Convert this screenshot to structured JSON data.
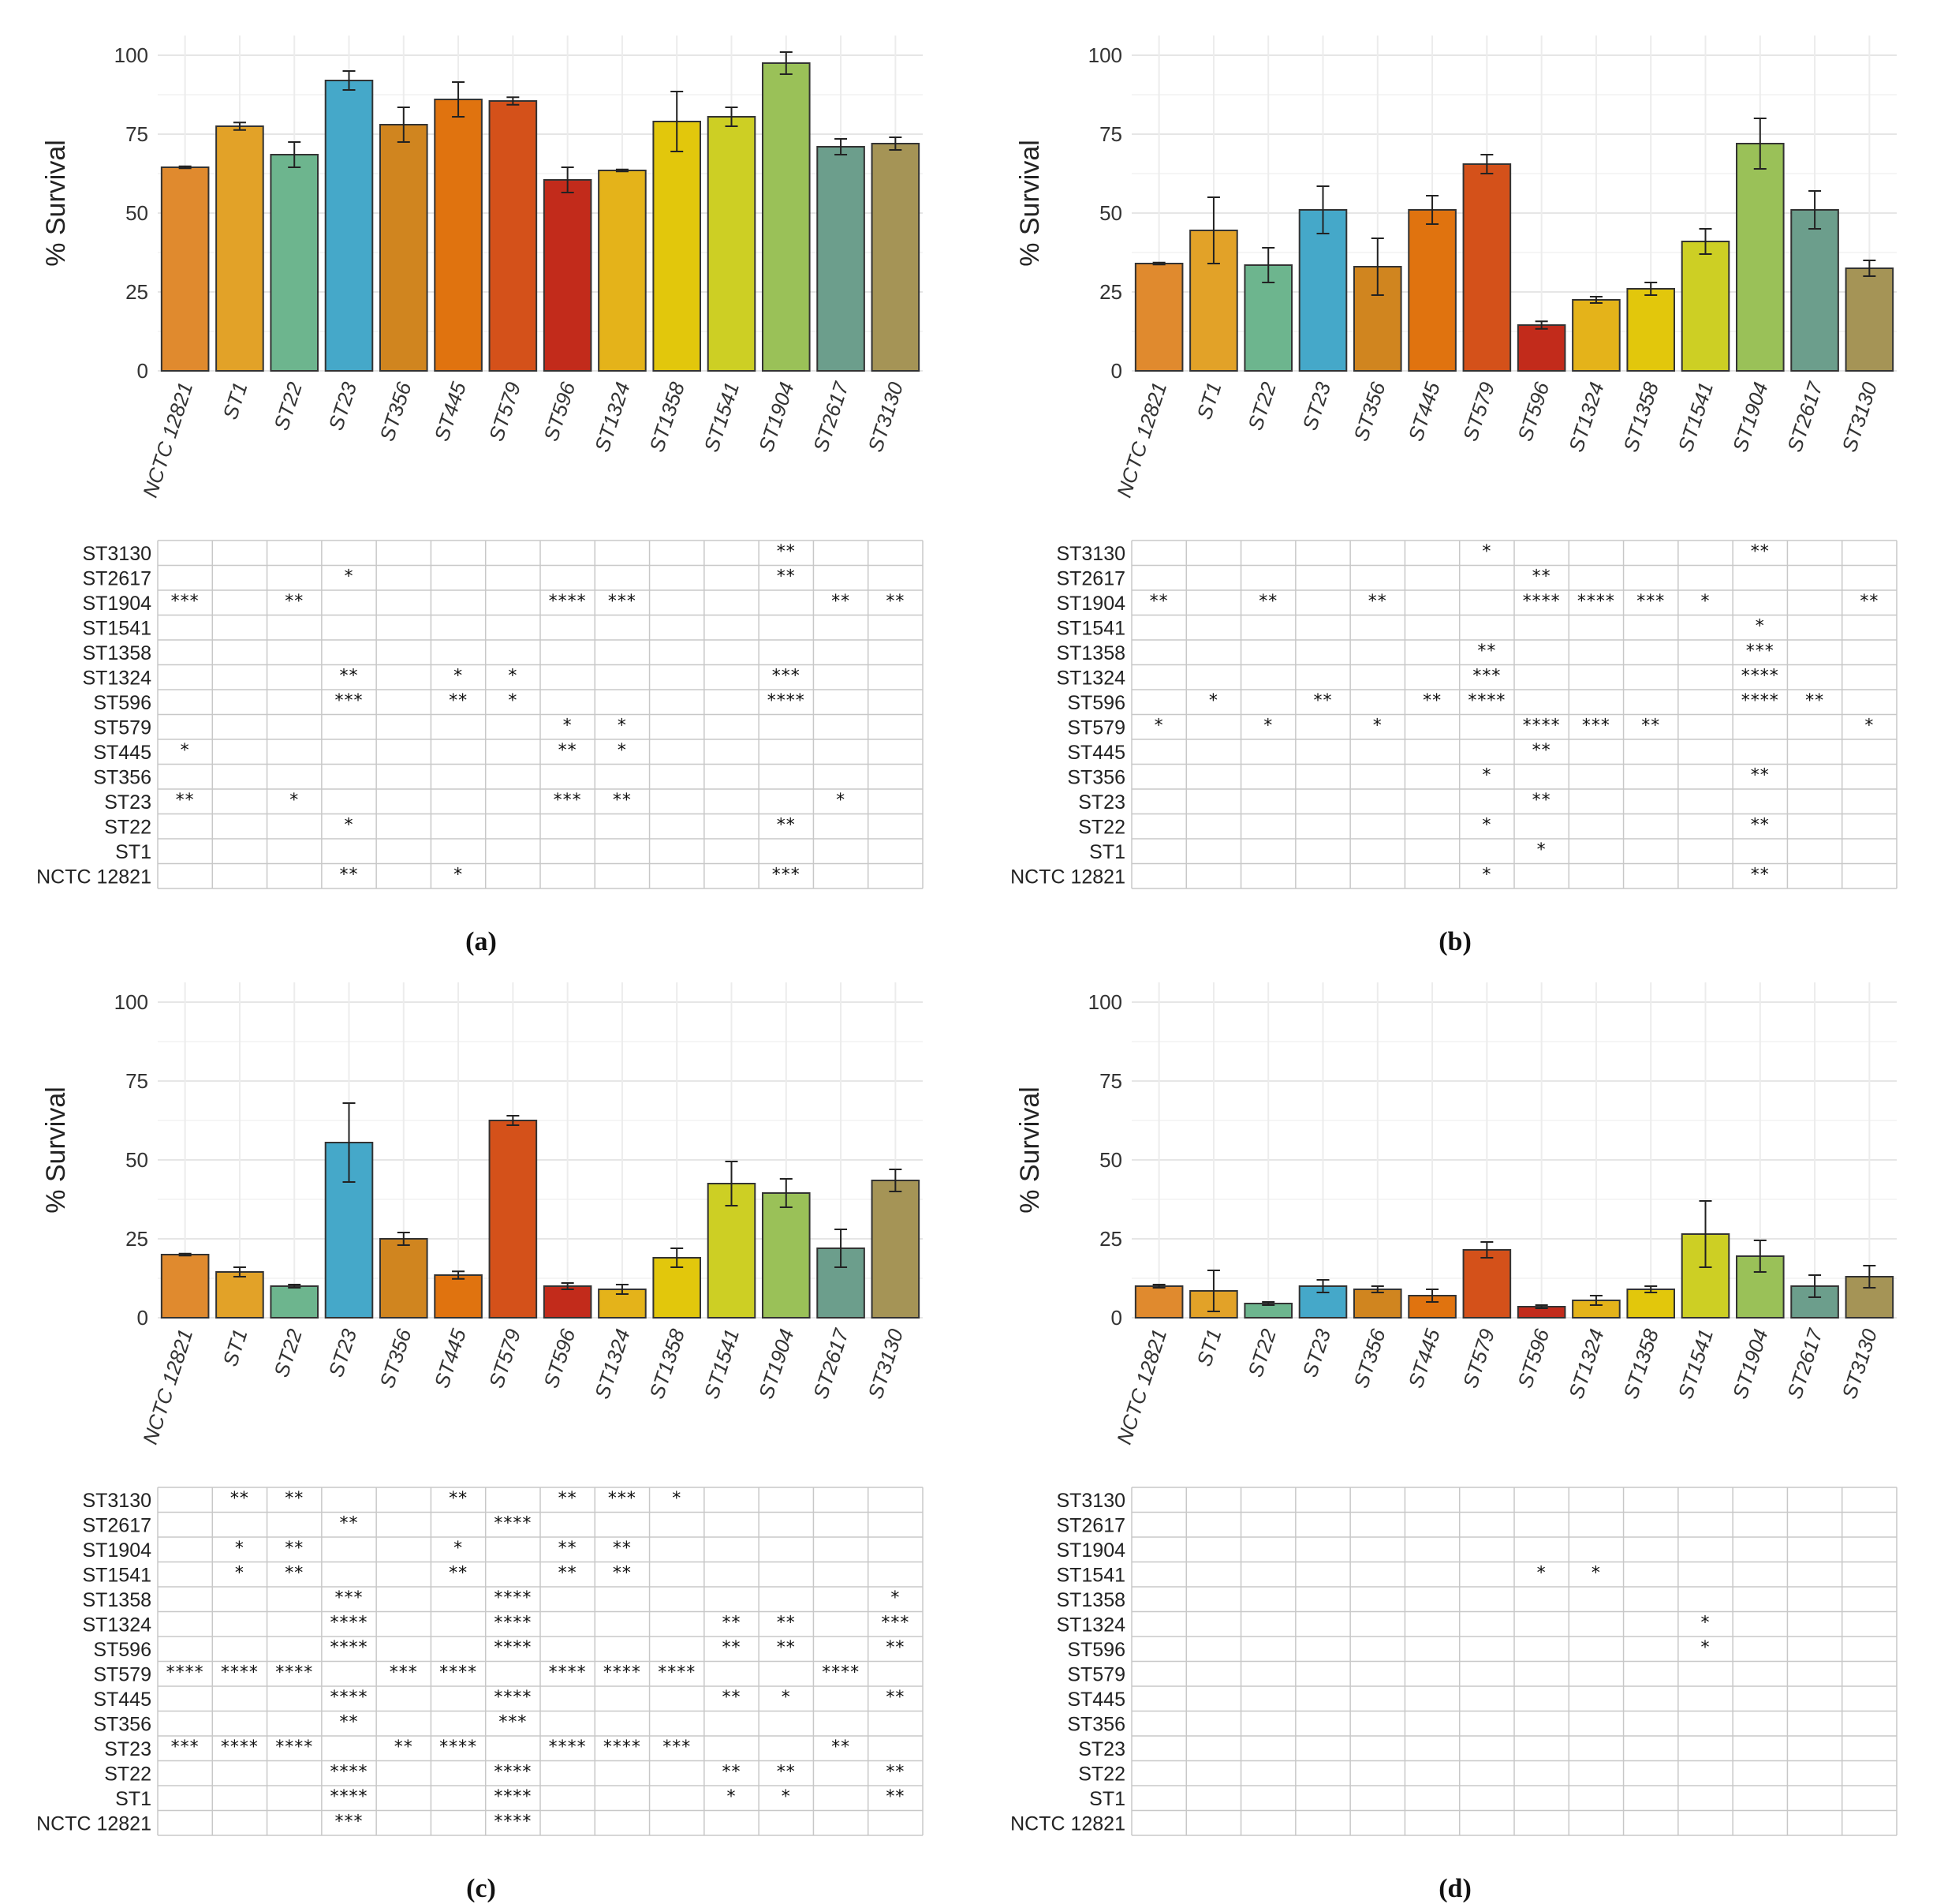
{
  "colors": [
    "#E08A2E",
    "#E2A228",
    "#6DB58E",
    "#45A8C9",
    "#D0851F",
    "#E0730F",
    "#D4511A",
    "#C22B1B",
    "#E4B31A",
    "#E2C70C",
    "#CDCF24",
    "#9AC158",
    "#6C9E8C",
    "#A59456"
  ],
  "chart_data": [
    {
      "type": "bar",
      "panel": "(a)",
      "ylabel": "% Survival",
      "ylim": [
        0,
        100
      ],
      "yticks": [
        "0",
        "25",
        "50",
        "75",
        "100"
      ],
      "categories": [
        "NCTC 12821",
        "ST1",
        "ST22",
        "ST23",
        "ST356",
        "ST445",
        "ST579",
        "ST596",
        "ST1324",
        "ST1358",
        "ST1541",
        "ST1904",
        "ST2617",
        "ST3130"
      ],
      "values": [
        64.5,
        77.5,
        68.5,
        92,
        78,
        86,
        85.5,
        60.5,
        63.5,
        79,
        80.5,
        97.5,
        71,
        72
      ],
      "errors": [
        0.3,
        1.2,
        4,
        3,
        5.5,
        5.5,
        1.2,
        4,
        0.3,
        9.5,
        3,
        3.5,
        2.5,
        2
      ],
      "sig_rows": [
        "ST3130",
        "ST2617",
        "ST1904",
        "ST1541",
        "ST1358",
        "ST1324",
        "ST596",
        "ST579",
        "ST445",
        "ST356",
        "ST23",
        "ST22",
        "ST1",
        "NCTC 12821"
      ],
      "sig": [
        [
          "",
          "",
          "",
          "",
          "",
          "",
          "",
          "",
          "",
          "",
          "",
          "**",
          "",
          ""
        ],
        [
          "",
          "",
          "",
          "*",
          "",
          "",
          "",
          "",
          "",
          "",
          "",
          "**",
          "",
          ""
        ],
        [
          "***",
          "",
          "**",
          "",
          "",
          "",
          "",
          "****",
          "***",
          "",
          "",
          "",
          "**",
          "**"
        ],
        [
          "",
          "",
          "",
          "",
          "",
          "",
          "",
          "",
          "",
          "",
          "",
          "",
          "",
          ""
        ],
        [
          "",
          "",
          "",
          "",
          "",
          "",
          "",
          "",
          "",
          "",
          "",
          "",
          "",
          ""
        ],
        [
          "",
          "",
          "",
          "**",
          "",
          "*",
          "*",
          "",
          "",
          "",
          "",
          "***",
          "",
          ""
        ],
        [
          "",
          "",
          "",
          "***",
          "",
          "**",
          "*",
          "",
          "",
          "",
          "",
          "****",
          "",
          ""
        ],
        [
          "",
          "",
          "",
          "",
          "",
          "",
          "",
          "*",
          "*",
          "",
          "",
          "",
          "",
          ""
        ],
        [
          "*",
          "",
          "",
          "",
          "",
          "",
          "",
          "**",
          "*",
          "",
          "",
          "",
          "",
          ""
        ],
        [
          "",
          "",
          "",
          "",
          "",
          "",
          "",
          "",
          "",
          "",
          "",
          "",
          "",
          ""
        ],
        [
          "**",
          "",
          "*",
          "",
          "",
          "",
          "",
          "***",
          "**",
          "",
          "",
          "",
          "*",
          ""
        ],
        [
          "",
          "",
          "",
          "*",
          "",
          "",
          "",
          "",
          "",
          "",
          "",
          "**",
          "",
          ""
        ],
        [
          "",
          "",
          "",
          "",
          "",
          "",
          "",
          "",
          "",
          "",
          "",
          "",
          "",
          ""
        ],
        [
          "",
          "",
          "",
          "**",
          "",
          "*",
          "",
          "",
          "",
          "",
          "",
          "***",
          "",
          ""
        ]
      ]
    },
    {
      "type": "bar",
      "panel": "(b)",
      "ylabel": "% Survival",
      "ylim": [
        0,
        100
      ],
      "yticks": [
        "0",
        "25",
        "50",
        "75",
        "100"
      ],
      "categories": [
        "NCTC 12821",
        "ST1",
        "ST22",
        "ST23",
        "ST356",
        "ST445",
        "ST579",
        "ST596",
        "ST1324",
        "ST1358",
        "ST1541",
        "ST1904",
        "ST2617",
        "ST3130"
      ],
      "values": [
        34,
        44.5,
        33.5,
        51,
        33,
        51,
        65.5,
        14.5,
        22.5,
        26,
        41,
        72,
        51,
        32.5
      ],
      "errors": [
        0.3,
        10.5,
        5.5,
        7.5,
        9,
        4.5,
        3,
        1.2,
        1,
        2,
        4,
        8,
        6,
        2.5
      ],
      "sig_rows": [
        "ST3130",
        "ST2617",
        "ST1904",
        "ST1541",
        "ST1358",
        "ST1324",
        "ST596",
        "ST579",
        "ST445",
        "ST356",
        "ST23",
        "ST22",
        "ST1",
        "NCTC 12821"
      ],
      "sig": [
        [
          "",
          "",
          "",
          "",
          "",
          "",
          "*",
          "",
          "",
          "",
          "",
          "**",
          "",
          ""
        ],
        [
          "",
          "",
          "",
          "",
          "",
          "",
          "",
          "**",
          "",
          "",
          "",
          "",
          "",
          ""
        ],
        [
          "**",
          "",
          "**",
          "",
          "**",
          "",
          "",
          "****",
          "****",
          "***",
          "*",
          "",
          "",
          "**"
        ],
        [
          "",
          "",
          "",
          "",
          "",
          "",
          "",
          "",
          "",
          "",
          "",
          "*",
          "",
          ""
        ],
        [
          "",
          "",
          "",
          "",
          "",
          "",
          "**",
          "",
          "",
          "",
          "",
          "***",
          "",
          ""
        ],
        [
          "",
          "",
          "",
          "",
          "",
          "",
          "***",
          "",
          "",
          "",
          "",
          "****",
          "",
          ""
        ],
        [
          "",
          "*",
          "",
          "**",
          "",
          "**",
          "****",
          "",
          "",
          "",
          "",
          "****",
          "**",
          ""
        ],
        [
          "*",
          "",
          "*",
          "",
          "*",
          "",
          "",
          "****",
          "***",
          "**",
          "",
          "",
          "",
          "*"
        ],
        [
          "",
          "",
          "",
          "",
          "",
          "",
          "",
          "**",
          "",
          "",
          "",
          "",
          "",
          ""
        ],
        [
          "",
          "",
          "",
          "",
          "",
          "",
          "*",
          "",
          "",
          "",
          "",
          "**",
          "",
          ""
        ],
        [
          "",
          "",
          "",
          "",
          "",
          "",
          "",
          "**",
          "",
          "",
          "",
          "",
          "",
          ""
        ],
        [
          "",
          "",
          "",
          "",
          "",
          "",
          "*",
          "",
          "",
          "",
          "",
          "**",
          "",
          ""
        ],
        [
          "",
          "",
          "",
          "",
          "",
          "",
          "",
          "*",
          "",
          "",
          "",
          "",
          "",
          ""
        ],
        [
          "",
          "",
          "",
          "",
          "",
          "",
          "*",
          "",
          "",
          "",
          "",
          "**",
          "",
          ""
        ]
      ]
    },
    {
      "type": "bar",
      "panel": "(c)",
      "ylabel": "% Survival",
      "ylim": [
        0,
        100
      ],
      "yticks": [
        "0",
        "25",
        "50",
        "75",
        "100"
      ],
      "categories": [
        "NCTC 12821",
        "ST1",
        "ST22",
        "ST23",
        "ST356",
        "ST445",
        "ST579",
        "ST596",
        "ST1324",
        "ST1358",
        "ST1541",
        "ST1904",
        "ST2617",
        "ST3130"
      ],
      "values": [
        20,
        14.5,
        10,
        55.5,
        25,
        13.5,
        62.5,
        10,
        9,
        19,
        42.5,
        39.5,
        22,
        43.5
      ],
      "errors": [
        0.3,
        1.5,
        0.5,
        12.5,
        2,
        1.2,
        1.5,
        1,
        1.5,
        3,
        7,
        4.5,
        6,
        3.5
      ],
      "sig_rows": [
        "ST3130",
        "ST2617",
        "ST1904",
        "ST1541",
        "ST1358",
        "ST1324",
        "ST596",
        "ST579",
        "ST445",
        "ST356",
        "ST23",
        "ST22",
        "ST1",
        "NCTC 12821"
      ],
      "sig": [
        [
          "",
          "**",
          "**",
          "",
          "",
          "**",
          "",
          "**",
          "***",
          "*",
          "",
          "",
          "",
          ""
        ],
        [
          "",
          "",
          "",
          "**",
          "",
          "",
          "****",
          "",
          "",
          "",
          "",
          "",
          "",
          ""
        ],
        [
          "",
          "*",
          "**",
          "",
          "",
          "*",
          "",
          "**",
          "**",
          "",
          "",
          "",
          "",
          ""
        ],
        [
          "",
          "*",
          "**",
          "",
          "",
          "**",
          "",
          "**",
          "**",
          "",
          "",
          "",
          "",
          ""
        ],
        [
          "",
          "",
          "",
          "***",
          "",
          "",
          "****",
          "",
          "",
          "",
          "",
          "",
          "",
          "*"
        ],
        [
          "",
          "",
          "",
          "****",
          "",
          "",
          "****",
          "",
          "",
          "",
          "**",
          "**",
          "",
          "***"
        ],
        [
          "",
          "",
          "",
          "****",
          "",
          "",
          "****",
          "",
          "",
          "",
          "**",
          "**",
          "",
          "**"
        ],
        [
          "****",
          "****",
          "****",
          "",
          "***",
          "****",
          "",
          "****",
          "****",
          "****",
          "",
          "",
          "****",
          ""
        ],
        [
          "",
          "",
          "",
          "****",
          "",
          "",
          "****",
          "",
          "",
          "",
          "**",
          "*",
          "",
          "**"
        ],
        [
          "",
          "",
          "",
          "**",
          "",
          "",
          "***",
          "",
          "",
          "",
          "",
          "",
          "",
          ""
        ],
        [
          "***",
          "****",
          "****",
          "",
          "**",
          "****",
          "",
          "****",
          "****",
          "***",
          "",
          "",
          "**",
          ""
        ],
        [
          "",
          "",
          "",
          "****",
          "",
          "",
          "****",
          "",
          "",
          "",
          "**",
          "**",
          "",
          "**"
        ],
        [
          "",
          "",
          "",
          "****",
          "",
          "",
          "****",
          "",
          "",
          "",
          "*",
          "*",
          "",
          "**"
        ],
        [
          "",
          "",
          "",
          "***",
          "",
          "",
          "****",
          "",
          "",
          "",
          "",
          "",
          "",
          ""
        ]
      ]
    },
    {
      "type": "bar",
      "panel": "(d)",
      "ylabel": "% Survival",
      "ylim": [
        0,
        100
      ],
      "yticks": [
        "0",
        "25",
        "50",
        "75",
        "100"
      ],
      "categories": [
        "NCTC 12821",
        "ST1",
        "ST22",
        "ST23",
        "ST356",
        "ST445",
        "ST579",
        "ST596",
        "ST1324",
        "ST1358",
        "ST1541",
        "ST1904",
        "ST2617",
        "ST3130"
      ],
      "values": [
        10,
        8.5,
        4.5,
        10,
        9,
        7,
        21.5,
        3.5,
        5.5,
        9,
        26.5,
        19.5,
        10,
        13
      ],
      "errors": [
        0.5,
        6.5,
        0.5,
        2,
        1,
        2,
        2.5,
        0.5,
        1.5,
        1,
        10.5,
        5,
        3.5,
        3.5
      ],
      "sig_rows": [
        "ST3130",
        "ST2617",
        "ST1904",
        "ST1541",
        "ST1358",
        "ST1324",
        "ST596",
        "ST579",
        "ST445",
        "ST356",
        "ST23",
        "ST22",
        "ST1",
        "NCTC 12821"
      ],
      "sig": [
        [
          "",
          "",
          "",
          "",
          "",
          "",
          "",
          "",
          "",
          "",
          "",
          "",
          "",
          ""
        ],
        [
          "",
          "",
          "",
          "",
          "",
          "",
          "",
          "",
          "",
          "",
          "",
          "",
          "",
          ""
        ],
        [
          "",
          "",
          "",
          "",
          "",
          "",
          "",
          "",
          "",
          "",
          "",
          "",
          "",
          ""
        ],
        [
          "",
          "",
          "",
          "",
          "",
          "",
          "",
          "*",
          "*",
          "",
          "",
          "",
          "",
          ""
        ],
        [
          "",
          "",
          "",
          "",
          "",
          "",
          "",
          "",
          "",
          "",
          "",
          "",
          "",
          ""
        ],
        [
          "",
          "",
          "",
          "",
          "",
          "",
          "",
          "",
          "",
          "",
          "*",
          "",
          "",
          ""
        ],
        [
          "",
          "",
          "",
          "",
          "",
          "",
          "",
          "",
          "",
          "",
          "*",
          "",
          "",
          ""
        ],
        [
          "",
          "",
          "",
          "",
          "",
          "",
          "",
          "",
          "",
          "",
          "",
          "",
          "",
          ""
        ],
        [
          "",
          "",
          "",
          "",
          "",
          "",
          "",
          "",
          "",
          "",
          "",
          "",
          "",
          ""
        ],
        [
          "",
          "",
          "",
          "",
          "",
          "",
          "",
          "",
          "",
          "",
          "",
          "",
          "",
          ""
        ],
        [
          "",
          "",
          "",
          "",
          "",
          "",
          "",
          "",
          "",
          "",
          "",
          "",
          "",
          ""
        ],
        [
          "",
          "",
          "",
          "",
          "",
          "",
          "",
          "",
          "",
          "",
          "",
          "",
          "",
          ""
        ],
        [
          "",
          "",
          "",
          "",
          "",
          "",
          "",
          "",
          "",
          "",
          "",
          "",
          "",
          ""
        ],
        [
          "",
          "",
          "",
          "",
          "",
          "",
          "",
          "",
          "",
          "",
          "",
          "",
          "",
          ""
        ]
      ]
    }
  ]
}
